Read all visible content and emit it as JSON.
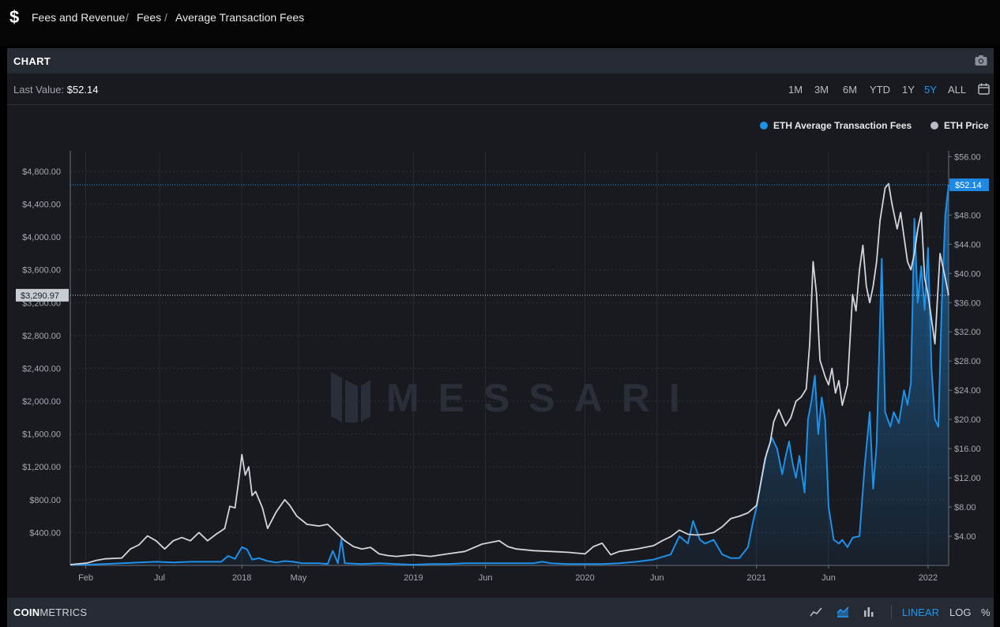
{
  "breadcrumb": {
    "icon": "dollar-icon",
    "items": [
      "Fees and Revenue",
      "Fees",
      "Average Transaction Fees"
    ],
    "separator": "/"
  },
  "panel": {
    "title": "CHART",
    "camera_icon": "camera-icon"
  },
  "summary": {
    "label": "Last Value:",
    "value": "$52.14"
  },
  "ranges": {
    "items": [
      "1M",
      "3M",
      "6M",
      "YTD",
      "1Y",
      "5Y",
      "ALL"
    ],
    "active": "5Y",
    "calendar_icon": "calendar-icon"
  },
  "footer": {
    "brand_bold": "COIN",
    "brand_rest": "METRICS",
    "chart_types": [
      "line-chart-icon",
      "area-chart-icon",
      "bar-chart-icon"
    ],
    "active_chart_type": "area-chart-icon",
    "scales": [
      "LINEAR",
      "LOG",
      "%"
    ],
    "active_scale": "LINEAR"
  },
  "watermark": "MESSARI",
  "colors": {
    "fees": "#1e90e8",
    "price": "#d2d5db",
    "accent": "#2196f3"
  },
  "chart_data": {
    "type": "line",
    "legend_placement": "top-right",
    "grid": true,
    "x_ticks": [
      {
        "label": "Feb",
        "at": 0.09
      },
      {
        "label": "Jul",
        "at": 0.52
      },
      {
        "label": "2018",
        "at": 1.0
      },
      {
        "label": "May",
        "at": 1.33
      },
      {
        "label": "2019",
        "at": 2.0
      },
      {
        "label": "Jun",
        "at": 2.42
      },
      {
        "label": "2020",
        "at": 3.0
      },
      {
        "label": "Jun",
        "at": 3.42
      },
      {
        "label": "2021",
        "at": 4.0
      },
      {
        "label": "Jun",
        "at": 4.42
      },
      {
        "label": "2022",
        "at": 5.0
      }
    ],
    "left_axis": {
      "ticks": [
        "$400.00",
        "$800.00",
        "$1,200.00",
        "$1,600.00",
        "$2,000.00",
        "$2,400.00",
        "$2,800.00",
        "$3,200.00",
        "$3,600.00",
        "$4,000.00",
        "$4,400.00",
        "$4,800.00"
      ],
      "range": [
        0,
        5050
      ],
      "crosshair_label": "$3,290.97",
      "crosshair_value": 3290.97
    },
    "right_axis": {
      "ticks": [
        "$4.00",
        "$8.00",
        "$12.00",
        "$16.00",
        "$20.00",
        "$24.00",
        "$28.00",
        "$32.00",
        "$36.00",
        "$40.00",
        "$44.00",
        "$48.00",
        "$52.00",
        "$56.00"
      ],
      "range": [
        0,
        56.8
      ],
      "crosshair_label": "$52.14",
      "crosshair_value": 52.14
    },
    "series": [
      {
        "name": "ETH Average Transaction Fees",
        "axis": "right",
        "points": [
          [
            0.0,
            0.1
          ],
          [
            0.1,
            0.1
          ],
          [
            0.2,
            0.2
          ],
          [
            0.3,
            0.3
          ],
          [
            0.4,
            0.4
          ],
          [
            0.5,
            0.5
          ],
          [
            0.6,
            0.4
          ],
          [
            0.7,
            0.5
          ],
          [
            0.8,
            0.5
          ],
          [
            0.88,
            0.5
          ],
          [
            0.92,
            1.3
          ],
          [
            0.96,
            0.9
          ],
          [
            1.0,
            2.5
          ],
          [
            1.03,
            2.2
          ],
          [
            1.06,
            0.8
          ],
          [
            1.1,
            1.0
          ],
          [
            1.15,
            0.6
          ],
          [
            1.2,
            0.4
          ],
          [
            1.25,
            0.6
          ],
          [
            1.3,
            0.5
          ],
          [
            1.35,
            0.3
          ],
          [
            1.4,
            0.3
          ],
          [
            1.45,
            0.3
          ],
          [
            1.5,
            0.2
          ],
          [
            1.53,
            2.0
          ],
          [
            1.56,
            0.3
          ],
          [
            1.58,
            3.6
          ],
          [
            1.6,
            0.3
          ],
          [
            1.7,
            0.2
          ],
          [
            1.8,
            0.3
          ],
          [
            1.9,
            0.2
          ],
          [
            2.0,
            0.1
          ],
          [
            2.1,
            0.2
          ],
          [
            2.2,
            0.2
          ],
          [
            2.3,
            0.3
          ],
          [
            2.4,
            0.3
          ],
          [
            2.5,
            0.3
          ],
          [
            2.6,
            0.3
          ],
          [
            2.7,
            0.3
          ],
          [
            2.75,
            0.5
          ],
          [
            2.8,
            0.3
          ],
          [
            2.9,
            0.2
          ],
          [
            3.0,
            0.2
          ],
          [
            3.1,
            0.2
          ],
          [
            3.2,
            0.3
          ],
          [
            3.3,
            0.5
          ],
          [
            3.4,
            0.8
          ],
          [
            3.5,
            1.5
          ],
          [
            3.55,
            4.0
          ],
          [
            3.6,
            3.0
          ],
          [
            3.63,
            6.1
          ],
          [
            3.67,
            3.5
          ],
          [
            3.7,
            3.0
          ],
          [
            3.75,
            3.5
          ],
          [
            3.8,
            1.5
          ],
          [
            3.85,
            1.0
          ],
          [
            3.9,
            1.0
          ],
          [
            3.95,
            2.5
          ],
          [
            3.98,
            6.0
          ],
          [
            4.0,
            8.0
          ],
          [
            4.03,
            12.0
          ],
          [
            4.06,
            15.5
          ],
          [
            4.09,
            17.5
          ],
          [
            4.12,
            16.0
          ],
          [
            4.15,
            12.5
          ],
          [
            4.17,
            15.0
          ],
          [
            4.19,
            17.0
          ],
          [
            4.21,
            14.0
          ],
          [
            4.23,
            12.0
          ],
          [
            4.25,
            15.0
          ],
          [
            4.28,
            10.0
          ],
          [
            4.3,
            20.0
          ],
          [
            4.32,
            22.5
          ],
          [
            4.34,
            26.0
          ],
          [
            4.36,
            18.0
          ],
          [
            4.38,
            23.0
          ],
          [
            4.4,
            20.0
          ],
          [
            4.42,
            8.0
          ],
          [
            4.45,
            3.5
          ],
          [
            4.48,
            3.0
          ],
          [
            4.5,
            3.5
          ],
          [
            4.53,
            2.5
          ],
          [
            4.56,
            3.8
          ],
          [
            4.6,
            4.0
          ],
          [
            4.63,
            13.5
          ],
          [
            4.66,
            21.0
          ],
          [
            4.68,
            10.5
          ],
          [
            4.7,
            16.5
          ],
          [
            4.73,
            42.0
          ],
          [
            4.75,
            21.0
          ],
          [
            4.78,
            19.0
          ],
          [
            4.8,
            21.0
          ],
          [
            4.83,
            19.5
          ],
          [
            4.86,
            24.0
          ],
          [
            4.88,
            22.0
          ],
          [
            4.9,
            25.0
          ],
          [
            4.92,
            47.5
          ],
          [
            4.94,
            36.0
          ],
          [
            4.96,
            41.0
          ],
          [
            4.98,
            35.0
          ],
          [
            5.0,
            43.5
          ],
          [
            5.02,
            27.0
          ],
          [
            5.04,
            20.0
          ],
          [
            5.06,
            19.0
          ],
          [
            5.08,
            36.0
          ],
          [
            5.1,
            48.0
          ],
          [
            5.12,
            52.14
          ]
        ]
      },
      {
        "name": "ETH Price",
        "axis": "left",
        "points": [
          [
            0.0,
            10
          ],
          [
            0.1,
            30
          ],
          [
            0.15,
            60
          ],
          [
            0.2,
            80
          ],
          [
            0.3,
            90
          ],
          [
            0.35,
            200
          ],
          [
            0.4,
            250
          ],
          [
            0.45,
            360
          ],
          [
            0.5,
            300
          ],
          [
            0.55,
            200
          ],
          [
            0.6,
            300
          ],
          [
            0.65,
            340
          ],
          [
            0.7,
            300
          ],
          [
            0.75,
            400
          ],
          [
            0.8,
            300
          ],
          [
            0.85,
            380
          ],
          [
            0.9,
            450
          ],
          [
            0.93,
            720
          ],
          [
            0.96,
            700
          ],
          [
            0.98,
            1000
          ],
          [
            1.0,
            1350
          ],
          [
            1.02,
            1100
          ],
          [
            1.04,
            1200
          ],
          [
            1.06,
            850
          ],
          [
            1.08,
            900
          ],
          [
            1.12,
            700
          ],
          [
            1.15,
            450
          ],
          [
            1.2,
            650
          ],
          [
            1.25,
            800
          ],
          [
            1.28,
            730
          ],
          [
            1.32,
            600
          ],
          [
            1.38,
            500
          ],
          [
            1.45,
            480
          ],
          [
            1.5,
            500
          ],
          [
            1.55,
            400
          ],
          [
            1.6,
            300
          ],
          [
            1.65,
            230
          ],
          [
            1.7,
            200
          ],
          [
            1.75,
            220
          ],
          [
            1.8,
            140
          ],
          [
            1.85,
            120
          ],
          [
            1.9,
            110
          ],
          [
            2.0,
            130
          ],
          [
            2.1,
            110
          ],
          [
            2.2,
            140
          ],
          [
            2.3,
            170
          ],
          [
            2.4,
            260
          ],
          [
            2.45,
            280
          ],
          [
            2.5,
            300
          ],
          [
            2.55,
            230
          ],
          [
            2.6,
            200
          ],
          [
            2.7,
            180
          ],
          [
            2.8,
            170
          ],
          [
            2.9,
            160
          ],
          [
            3.0,
            140
          ],
          [
            3.05,
            230
          ],
          [
            3.1,
            270
          ],
          [
            3.15,
            130
          ],
          [
            3.2,
            170
          ],
          [
            3.3,
            200
          ],
          [
            3.4,
            240
          ],
          [
            3.45,
            300
          ],
          [
            3.5,
            350
          ],
          [
            3.55,
            430
          ],
          [
            3.6,
            380
          ],
          [
            3.65,
            370
          ],
          [
            3.7,
            380
          ],
          [
            3.75,
            400
          ],
          [
            3.8,
            470
          ],
          [
            3.85,
            570
          ],
          [
            3.9,
            600
          ],
          [
            3.95,
            640
          ],
          [
            4.0,
            730
          ],
          [
            4.02,
            950
          ],
          [
            4.05,
            1300
          ],
          [
            4.08,
            1500
          ],
          [
            4.1,
            1750
          ],
          [
            4.13,
            1900
          ],
          [
            4.15,
            1800
          ],
          [
            4.17,
            1700
          ],
          [
            4.2,
            1800
          ],
          [
            4.23,
            2000
          ],
          [
            4.26,
            2050
          ],
          [
            4.29,
            2150
          ],
          [
            4.31,
            2700
          ],
          [
            4.33,
            3700
          ],
          [
            4.35,
            3300
          ],
          [
            4.37,
            2500
          ],
          [
            4.4,
            2300
          ],
          [
            4.42,
            2200
          ],
          [
            4.44,
            2400
          ],
          [
            4.46,
            2100
          ],
          [
            4.48,
            2250
          ],
          [
            4.5,
            1950
          ],
          [
            4.53,
            2200
          ],
          [
            4.56,
            3300
          ],
          [
            4.58,
            3100
          ],
          [
            4.6,
            3600
          ],
          [
            4.62,
            3900
          ],
          [
            4.64,
            3400
          ],
          [
            4.66,
            3200
          ],
          [
            4.68,
            3400
          ],
          [
            4.7,
            3700
          ],
          [
            4.72,
            4200
          ],
          [
            4.75,
            4600
          ],
          [
            4.77,
            4650
          ],
          [
            4.79,
            4400
          ],
          [
            4.82,
            4100
          ],
          [
            4.84,
            4300
          ],
          [
            4.86,
            4000
          ],
          [
            4.88,
            3700
          ],
          [
            4.9,
            3600
          ],
          [
            4.92,
            3800
          ],
          [
            4.94,
            4100
          ],
          [
            4.96,
            4300
          ],
          [
            4.98,
            3500
          ],
          [
            5.0,
            3300
          ],
          [
            5.04,
            2700
          ],
          [
            5.07,
            3800
          ],
          [
            5.1,
            3500
          ],
          [
            5.12,
            3290.97
          ]
        ]
      }
    ]
  }
}
